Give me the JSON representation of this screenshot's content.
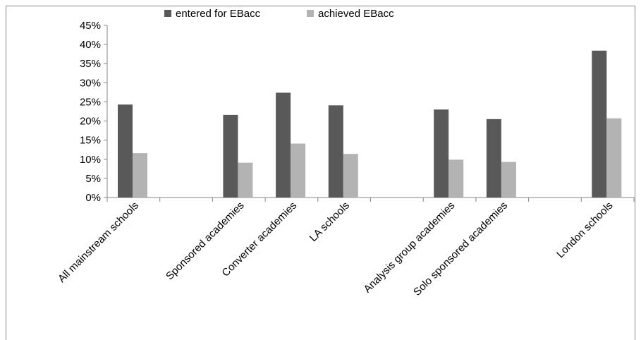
{
  "chart_data": {
    "type": "bar",
    "categories": [
      "All mainstream schools",
      "",
      "Sponsored academies",
      "Converter academies",
      "LA schools",
      "",
      "Analysis group academies",
      "Solo sponsored academies",
      "",
      "London schools"
    ],
    "series": [
      {
        "name": "entered for EBacc",
        "color": "#595959",
        "values": [
          24.3,
          null,
          21.6,
          27.4,
          24.1,
          null,
          23.0,
          20.5,
          null,
          38.4
        ]
      },
      {
        "name": "achieved EBacc",
        "color": "#b3b3b3",
        "values": [
          11.6,
          null,
          9.1,
          14.1,
          11.4,
          null,
          9.9,
          9.3,
          null,
          20.7
        ]
      }
    ],
    "yticks": [
      "0%",
      "5%",
      "10%",
      "15%",
      "20%",
      "25%",
      "30%",
      "35%",
      "40%",
      "45%"
    ],
    "ylim": [
      0,
      45
    ],
    "grid": false,
    "legend": "top"
  }
}
